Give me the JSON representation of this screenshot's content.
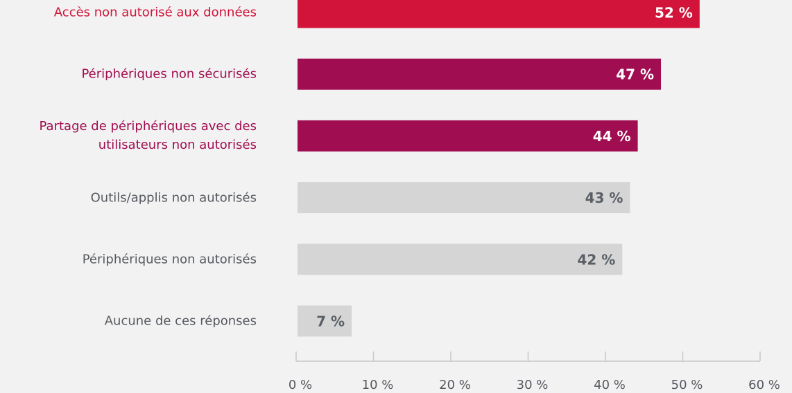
{
  "chart_data": {
    "type": "hbar",
    "categories": [
      "Accès non autorisé aux données",
      "Périphériques non sécurisés",
      "Partage de périphériques avec des utilisateurs non autorisés",
      "Outils/applis non autorisés",
      "Périphériques non autorisés",
      "Aucune de ces réponses"
    ],
    "values": [
      52,
      47,
      44,
      43,
      42,
      7
    ],
    "value_labels": [
      "52 %",
      "47 %",
      "44 %",
      "43 %",
      "42 %",
      "7 %"
    ],
    "colors": [
      "#d2143a",
      "#a00d50",
      "#a00d50",
      "#d6d5d6",
      "#d6d5d6",
      "#d6d5d6"
    ],
    "label_colors": [
      "#d2143a",
      "#a00d50",
      "#a00d50",
      "#55595f",
      "#55595f",
      "#55595f"
    ],
    "value_label_colors": [
      "#ffffff",
      "#ffffff",
      "#ffffff",
      "#5a5f66",
      "#5a5f66",
      "#5a5f66"
    ],
    "xlim": [
      0,
      60
    ],
    "xticks": [
      {
        "value": 0,
        "label": "0 %"
      },
      {
        "value": 10,
        "label": "10 %"
      },
      {
        "value": 20,
        "label": "20 %"
      },
      {
        "value": 30,
        "label": "30 %"
      },
      {
        "value": 40,
        "label": "40 %"
      },
      {
        "value": 50,
        "label": "50 %"
      },
      {
        "value": 60,
        "label": "60 %"
      }
    ]
  }
}
